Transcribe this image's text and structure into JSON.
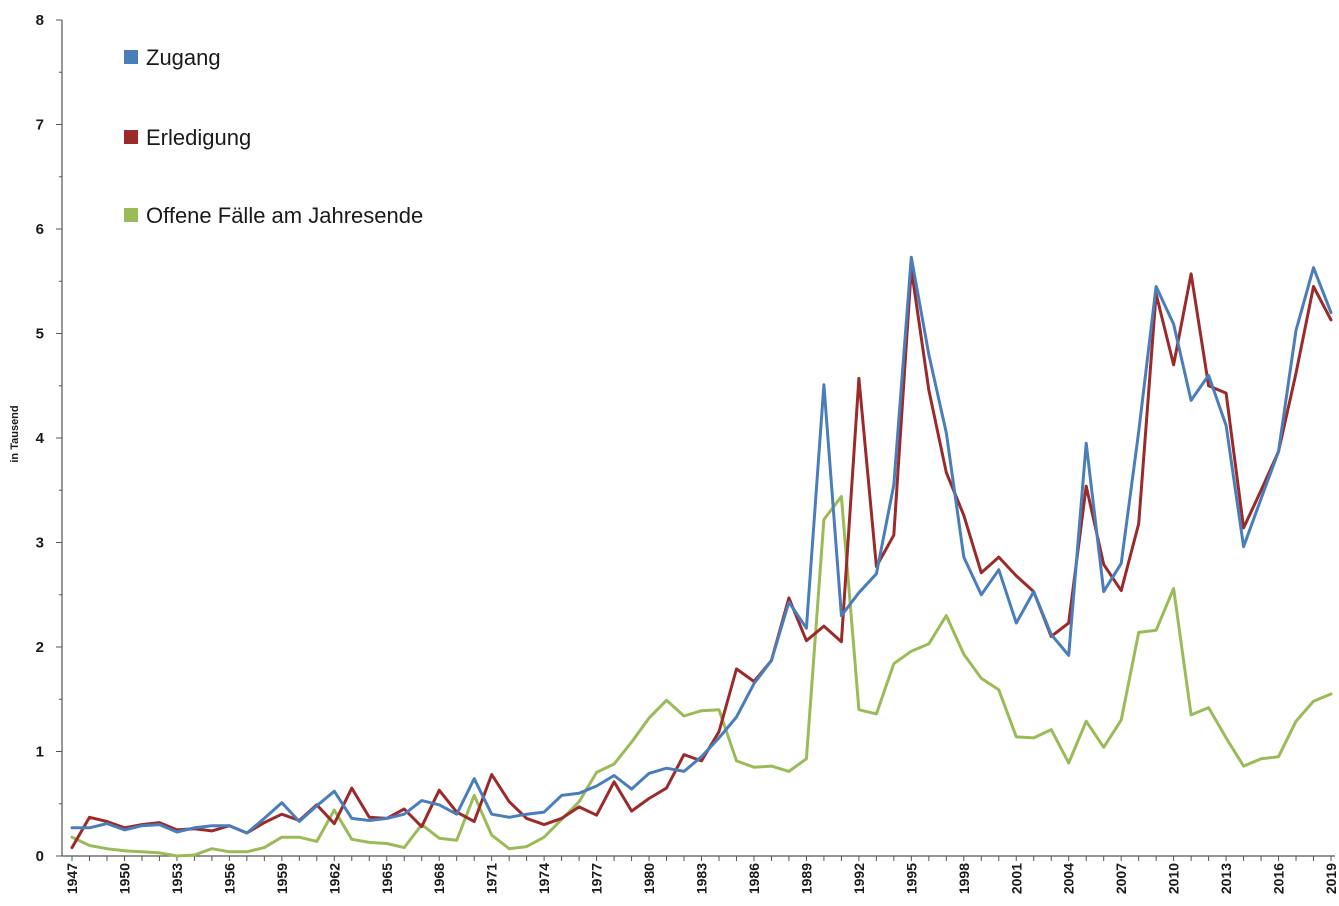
{
  "chart_data": {
    "type": "line",
    "title": "",
    "xlabel": "",
    "ylabel": "in Tausend",
    "ylim": [
      0,
      8
    ],
    "yticks": [
      "0",
      "1",
      "2",
      "3",
      "4",
      "5",
      "6",
      "7",
      "8"
    ],
    "x_tick_labels": [
      "1947",
      "1950",
      "1953",
      "1956",
      "1959",
      "1962",
      "1965",
      "1968",
      "1971",
      "1974",
      "1977",
      "1980",
      "1983",
      "1986",
      "1989",
      "1992",
      "1995",
      "1998",
      "2001",
      "2004",
      "2007",
      "2010",
      "2013",
      "2016",
      "2019"
    ],
    "x": [
      1947,
      1948,
      1949,
      1950,
      1951,
      1952,
      1953,
      1954,
      1955,
      1956,
      1957,
      1958,
      1959,
      1960,
      1961,
      1962,
      1963,
      1964,
      1965,
      1966,
      1967,
      1968,
      1969,
      1970,
      1971,
      1972,
      1973,
      1974,
      1975,
      1976,
      1977,
      1978,
      1979,
      1980,
      1981,
      1982,
      1983,
      1984,
      1985,
      1986,
      1987,
      1988,
      1989,
      1990,
      1991,
      1992,
      1993,
      1994,
      1995,
      1996,
      1997,
      1998,
      1999,
      2000,
      2001,
      2002,
      2003,
      2004,
      2005,
      2006,
      2007,
      2008,
      2009,
      2010,
      2011,
      2012,
      2013,
      2014,
      2015,
      2016,
      2017,
      2018,
      2019
    ],
    "grid": false,
    "legend_position": "top-left",
    "series": [
      {
        "name": "Zugang",
        "color": "#4a7ebb",
        "values": [
          0.27,
          0.27,
          0.31,
          0.25,
          0.29,
          0.3,
          0.23,
          0.27,
          0.29,
          0.29,
          0.22,
          0.36,
          0.51,
          0.33,
          0.48,
          0.62,
          0.36,
          0.34,
          0.36,
          0.4,
          0.53,
          0.49,
          0.4,
          0.74,
          0.4,
          0.37,
          0.4,
          0.42,
          0.58,
          0.6,
          0.67,
          0.77,
          0.64,
          0.79,
          0.84,
          0.81,
          0.95,
          1.13,
          1.33,
          1.65,
          1.87,
          2.43,
          2.18,
          4.51,
          2.3,
          2.52,
          2.7,
          3.55,
          5.73,
          4.8,
          4.05,
          2.86,
          2.5,
          2.74,
          2.23,
          2.53,
          2.12,
          1.92,
          3.95,
          2.53,
          2.8,
          4.06,
          5.45,
          5.09,
          4.36,
          4.6,
          4.12,
          2.96,
          3.42,
          3.87,
          5.03,
          5.63,
          5.2
        ]
      },
      {
        "name": "Erledigung",
        "color": "#9b2a2a",
        "values": [
          0.08,
          0.37,
          0.33,
          0.27,
          0.3,
          0.32,
          0.25,
          0.26,
          0.24,
          0.29,
          0.22,
          0.32,
          0.4,
          0.34,
          0.49,
          0.31,
          0.65,
          0.37,
          0.36,
          0.45,
          0.28,
          0.63,
          0.42,
          0.33,
          0.78,
          0.52,
          0.36,
          0.3,
          0.36,
          0.47,
          0.39,
          0.71,
          0.43,
          0.55,
          0.65,
          0.97,
          0.91,
          1.19,
          1.79,
          1.67,
          1.87,
          2.47,
          2.06,
          2.2,
          2.05,
          4.57,
          2.77,
          3.07,
          5.62,
          4.46,
          3.67,
          3.26,
          2.71,
          2.86,
          2.68,
          2.53,
          2.1,
          2.23,
          3.54,
          2.79,
          2.54,
          3.18,
          5.38,
          4.7,
          5.57,
          4.5,
          4.43,
          3.14,
          3.5,
          3.87,
          4.62,
          5.45,
          5.13
        ]
      },
      {
        "name": "Offene Fälle am Jahresende",
        "color": "#9bbb59",
        "values": [
          0.18,
          0.1,
          0.07,
          0.05,
          0.04,
          0.03,
          0.0,
          0.01,
          0.07,
          0.04,
          0.04,
          0.08,
          0.18,
          0.18,
          0.14,
          0.44,
          0.16,
          0.13,
          0.12,
          0.08,
          0.3,
          0.17,
          0.15,
          0.58,
          0.2,
          0.07,
          0.09,
          0.18,
          0.35,
          0.52,
          0.8,
          0.88,
          1.09,
          1.32,
          1.49,
          1.34,
          1.39,
          1.4,
          0.91,
          0.85,
          0.86,
          0.81,
          0.93,
          3.22,
          3.44,
          1.4,
          1.36,
          1.84,
          1.96,
          2.03,
          2.3,
          1.93,
          1.7,
          1.59,
          1.14,
          1.13,
          1.21,
          0.89,
          1.29,
          1.04,
          1.3,
          2.14,
          2.16,
          2.56,
          1.35,
          1.42,
          1.13,
          0.86,
          0.93,
          0.95,
          1.29,
          1.48,
          1.55
        ]
      }
    ]
  }
}
